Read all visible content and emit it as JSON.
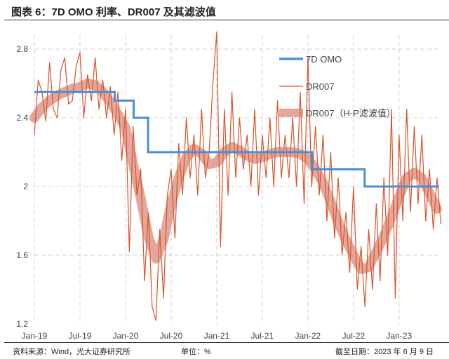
{
  "title": "图表 6：7D OMO 利率、DR007 及其滤波值",
  "footer": {
    "source": "资料来源：Wind，光大证券研究所",
    "unit": "单位：%",
    "as_of": "截至日期：2023 年 6 月 9 日"
  },
  "chart_data": {
    "type": "line",
    "xlabel": "",
    "ylabel": "",
    "ylim": [
      1.2,
      2.8
    ],
    "xlim": [
      "2019-01",
      "2023-06"
    ],
    "y_ticks": [
      "2.8",
      "2.4",
      "2",
      "1.6",
      "1.2"
    ],
    "y_tick_values": [
      2.8,
      2.4,
      2.0,
      1.6,
      1.2
    ],
    "x_ticks": [
      "Jan-19",
      "Jul-19",
      "Jan-20",
      "Jul-20",
      "Jan-21",
      "Jul-21",
      "Jan-22",
      "Jul-22",
      "Jan-23"
    ],
    "x_tick_dates": [
      "2019-01",
      "2019-07",
      "2020-01",
      "2020-07",
      "2021-01",
      "2021-07",
      "2022-01",
      "2022-07",
      "2023-01"
    ],
    "grid": "dashed",
    "legend_position": "top-right",
    "colors": {
      "omo": "#4a8fd6",
      "dr007": "#d6532b",
      "hp": "#d9826f"
    },
    "omo": {
      "name": "7D OMO",
      "type": "step",
      "dates": [
        "2019-01-01",
        "2019-11-18",
        "2020-02-03",
        "2020-03-30",
        "2022-01-17",
        "2022-08-15",
        "2023-06-09"
      ],
      "values": [
        2.55,
        2.5,
        2.4,
        2.2,
        2.1,
        2.0,
        2.0
      ]
    },
    "months": [
      "2019-01",
      "2019-02",
      "2019-03",
      "2019-04",
      "2019-05",
      "2019-06",
      "2019-07",
      "2019-08",
      "2019-09",
      "2019-10",
      "2019-11",
      "2019-12",
      "2020-01",
      "2020-02",
      "2020-03",
      "2020-04",
      "2020-05",
      "2020-06",
      "2020-07",
      "2020-08",
      "2020-09",
      "2020-10",
      "2020-11",
      "2020-12",
      "2021-01",
      "2021-02",
      "2021-03",
      "2021-04",
      "2021-05",
      "2021-06",
      "2021-07",
      "2021-08",
      "2021-09",
      "2021-10",
      "2021-11",
      "2021-12",
      "2022-01",
      "2022-02",
      "2022-03",
      "2022-04",
      "2022-05",
      "2022-06",
      "2022-07",
      "2022-08",
      "2022-09",
      "2022-10",
      "2022-11",
      "2022-12",
      "2023-01",
      "2023-02",
      "2023-03",
      "2023-04",
      "2023-05",
      "2023-06"
    ],
    "dr007": {
      "name": "DR007",
      "values_per_month": [
        [
          2.3,
          2.62
        ],
        [
          2.55,
          2.38
        ],
        [
          2.72,
          2.45
        ],
        [
          2.4,
          2.68
        ],
        [
          2.75,
          2.48
        ],
        [
          2.5,
          2.7
        ],
        [
          2.78,
          2.4
        ],
        [
          2.65,
          2.5
        ],
        [
          2.75,
          2.45
        ],
        [
          2.62,
          2.4
        ],
        [
          2.58,
          2.3
        ],
        [
          2.55,
          2.15
        ],
        [
          2.45,
          1.62
        ],
        [
          2.35,
          1.95
        ],
        [
          2.1,
          1.45
        ],
        [
          1.85,
          1.3
        ],
        [
          1.22,
          1.75
        ],
        [
          1.35,
          1.95
        ],
        [
          2.1,
          1.7
        ],
        [
          2.25,
          1.95
        ],
        [
          2.4,
          2.05
        ],
        [
          2.3,
          1.95
        ],
        [
          2.45,
          2.05
        ],
        [
          2.2,
          2.6
        ],
        [
          2.9,
          1.65
        ],
        [
          2.45,
          1.95
        ],
        [
          2.55,
          2.05
        ],
        [
          2.4,
          2.1
        ],
        [
          2.3,
          2.0
        ],
        [
          2.45,
          1.95
        ],
        [
          2.3,
          2.05
        ],
        [
          2.4,
          2.0
        ],
        [
          2.5,
          2.05
        ],
        [
          2.3,
          2.05
        ],
        [
          2.4,
          2.0
        ],
        [
          2.55,
          1.9
        ],
        [
          2.75,
          2.0
        ],
        [
          2.35,
          1.95
        ],
        [
          2.3,
          1.8
        ],
        [
          2.2,
          1.7
        ],
        [
          2.05,
          1.6
        ],
        [
          1.85,
          1.5
        ],
        [
          2.0,
          1.4
        ],
        [
          1.65,
          1.3
        ],
        [
          1.75,
          1.4
        ],
        [
          1.9,
          1.45
        ],
        [
          2.05,
          1.6
        ],
        [
          2.45,
          1.35
        ],
        [
          2.3,
          1.8
        ],
        [
          2.45,
          1.85
        ],
        [
          2.35,
          1.9
        ],
        [
          2.3,
          1.8
        ],
        [
          2.1,
          1.75
        ],
        [
          2.05,
          1.78
        ]
      ]
    },
    "hp": {
      "name": "DR007（H-P滤波值）",
      "values": [
        2.4,
        2.46,
        2.5,
        2.53,
        2.55,
        2.57,
        2.58,
        2.6,
        2.59,
        2.55,
        2.49,
        2.42,
        2.34,
        2.13,
        1.93,
        1.71,
        1.58,
        1.69,
        1.9,
        2.05,
        2.17,
        2.22,
        2.19,
        2.13,
        2.14,
        2.2,
        2.23,
        2.21,
        2.18,
        2.16,
        2.17,
        2.19,
        2.2,
        2.2,
        2.2,
        2.19,
        2.16,
        2.1,
        2.02,
        1.91,
        1.79,
        1.69,
        1.6,
        1.52,
        1.53,
        1.62,
        1.71,
        1.82,
        1.94,
        2.05,
        2.08,
        2.05,
        1.96,
        1.87
      ]
    }
  }
}
